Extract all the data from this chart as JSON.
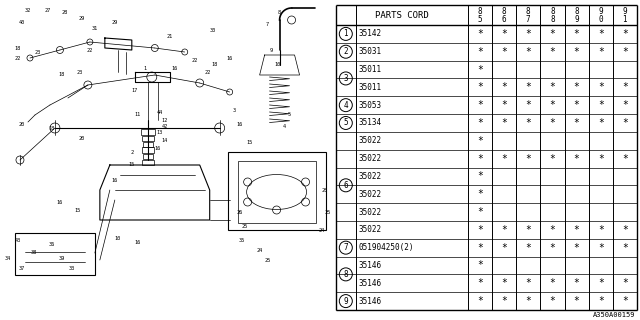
{
  "bg_color": "#ffffff",
  "table_header": "PARTS CORD",
  "col_headers": [
    "8\n5",
    "8\n6",
    "8\n7",
    "8\n8",
    "8\n9",
    "9\n0",
    "9\n1"
  ],
  "col_headers_top": [
    "8",
    "8",
    "8",
    "8",
    "8",
    "9",
    "9"
  ],
  "col_headers_bot": [
    "5",
    "6",
    "7",
    "8",
    "9",
    "0",
    "1"
  ],
  "rows": [
    {
      "num": "1",
      "code": "35142",
      "marks": [
        1,
        1,
        1,
        1,
        1,
        1,
        1
      ],
      "num_row": 0
    },
    {
      "num": "2",
      "code": "35031",
      "marks": [
        1,
        1,
        1,
        1,
        1,
        1,
        1
      ],
      "num_row": 0
    },
    {
      "num": "3",
      "code": "35011",
      "marks": [
        1,
        0,
        0,
        0,
        0,
        0,
        0
      ],
      "num_row": 0
    },
    {
      "num": "",
      "code": "35011",
      "marks": [
        1,
        1,
        1,
        1,
        1,
        1,
        1
      ],
      "num_row": 1
    },
    {
      "num": "4",
      "code": "35053",
      "marks": [
        1,
        1,
        1,
        1,
        1,
        1,
        1
      ],
      "num_row": 0
    },
    {
      "num": "5",
      "code": "35134",
      "marks": [
        1,
        1,
        1,
        1,
        1,
        1,
        1
      ],
      "num_row": 0
    },
    {
      "num": "",
      "code": "35022",
      "marks": [
        1,
        0,
        0,
        0,
        0,
        0,
        0
      ],
      "num_row": 0
    },
    {
      "num": "",
      "code": "35022",
      "marks": [
        1,
        1,
        1,
        1,
        1,
        1,
        1
      ],
      "num_row": 1
    },
    {
      "num": "6",
      "code": "35022",
      "marks": [
        1,
        0,
        0,
        0,
        0,
        0,
        0
      ],
      "num_row": 0
    },
    {
      "num": "",
      "code": "35022",
      "marks": [
        1,
        0,
        0,
        0,
        0,
        0,
        0
      ],
      "num_row": 1
    },
    {
      "num": "",
      "code": "35022",
      "marks": [
        1,
        0,
        0,
        0,
        0,
        0,
        0
      ],
      "num_row": 1
    },
    {
      "num": "",
      "code": "35022",
      "marks": [
        1,
        1,
        1,
        1,
        1,
        1,
        1
      ],
      "num_row": 1
    },
    {
      "num": "7",
      "code": "051904250(2)",
      "marks": [
        1,
        1,
        1,
        1,
        1,
        1,
        1
      ],
      "num_row": 0
    },
    {
      "num": "8",
      "code": "35146",
      "marks": [
        1,
        0,
        0,
        0,
        0,
        0,
        0
      ],
      "num_row": 0
    },
    {
      "num": "",
      "code": "35146",
      "marks": [
        1,
        1,
        1,
        1,
        1,
        1,
        1
      ],
      "num_row": 1
    },
    {
      "num": "9",
      "code": "35146",
      "marks": [
        1,
        1,
        1,
        1,
        1,
        1,
        1
      ],
      "num_row": 0
    }
  ],
  "row_groups": [
    {
      "num": "1",
      "rows": [
        0
      ]
    },
    {
      "num": "2",
      "rows": [
        1
      ]
    },
    {
      "num": "3",
      "rows": [
        2,
        3
      ]
    },
    {
      "num": "4",
      "rows": [
        4
      ]
    },
    {
      "num": "5",
      "rows": [
        5
      ]
    },
    {
      "num": "6",
      "rows": [
        6,
        7,
        8,
        9,
        10,
        11
      ]
    },
    {
      "num": "7",
      "rows": [
        12
      ]
    },
    {
      "num": "8",
      "rows": [
        13,
        14
      ]
    },
    {
      "num": "9",
      "rows": [
        15
      ]
    }
  ],
  "footnote": "A350A00159",
  "lc": "#000000",
  "tc": "#000000"
}
